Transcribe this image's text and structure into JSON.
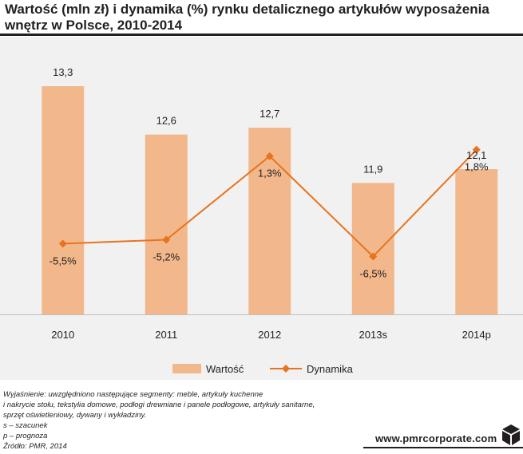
{
  "title": "Wartość (mln zł) i dynamika (%) rynku detalicznego artykułów wyposażenia wnętrz w Polsce, 2010-2014",
  "colors": {
    "bar": "#f2b88b",
    "line": "#e8731e",
    "panel": "#f1f1f1",
    "text": "#231f20"
  },
  "chart_data": {
    "type": "bar+line",
    "categories": [
      "2010",
      "2011",
      "2012",
      "2013s",
      "2014p"
    ],
    "series": [
      {
        "name": "Wartość",
        "type": "bar",
        "values": [
          13.3,
          12.6,
          12.7,
          11.9,
          12.1
        ],
        "labels": [
          "13,3",
          "12,6",
          "12,7",
          "11,9",
          "12,1"
        ],
        "ylim": [
          10.0,
          13.6
        ]
      },
      {
        "name": "Dynamika",
        "type": "line",
        "values": [
          -5.5,
          -5.2,
          1.3,
          -6.5,
          1.8
        ],
        "labels": [
          "-5,5%",
          "-5,2%",
          "1,3%",
          "-6,5%",
          "1,8%"
        ],
        "ylim": [
          -11.0,
          5.5
        ]
      }
    ],
    "legend": [
      "Wartość",
      "Dynamika"
    ],
    "legend_position": "bottom-center"
  },
  "notes": [
    "Wyjaśnienie: uwzględniono następujące segmenty: meble, artykuły kuchenne",
    "i nakrycie stołu, tekstylia domowe, podłogi drewniane i panele podłogowe, artykuły sanitarne,",
    "sprzęt oświetleniowy, dywany i wykładziny.",
    "s – szacunek",
    "p – prognoza",
    "Źródło: PMR, 2014"
  ],
  "brand": "www.pmrcorporate.com"
}
